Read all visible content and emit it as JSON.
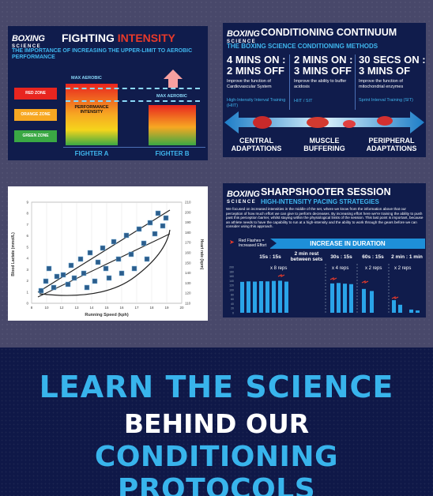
{
  "brand": {
    "logo_top": "BOXING",
    "logo_bottom": "SCIENCE"
  },
  "panel1": {
    "title_a": "FIGHTING ",
    "title_b": "INTENSITY",
    "subtitle": "THE IMPORTANCE OF INCREASING THE UPPER-LIMIT TO AEROBIC PERFORMANCE",
    "red_zone": "RED ZONE",
    "orange_zone": "ORANGE ZONE",
    "green_zone": "GREEN ZONE",
    "max_aerobic_a": "MAX AEROBIC",
    "max_aerobic_b": "MAX AEROBIC",
    "performance": "PERFORMANCE INTENSITY",
    "fighter_a": "FIGHTER A",
    "fighter_b": "FIGHTER B"
  },
  "panel2": {
    "title": "CONDITIONING CONTINUUM",
    "subtitle": "THE BOXING SCIENCE CONDITIONING METHODS",
    "methods": [
      {
        "head": "4 MINS ON :\n2 MINS OFF",
        "desc": "Improve the function of Cardiovascular System",
        "kind": "High-Intensity Interval Training (HIIT)"
      },
      {
        "head": "2 MINS ON :\n3 MINS OFF",
        "desc": "Improve the ability to buffer acidosis",
        "kind": "HIIT / SIT"
      },
      {
        "head": "30 SECS ON :\n3 MINS OF",
        "desc": "Improve the function of mitochondrial enzymes",
        "kind": "Sprint Interval Training (SIT)"
      }
    ],
    "adaptations": [
      "CENTRAL\nADAPTATIONS",
      "MUSCLE\nBUFFERING",
      "PERIPHERAL\nADAPTATIONS"
    ]
  },
  "panel3": {
    "ylabel": "Blood Lactate (mmol/L)",
    "y2label": "Heart rate (bpm)",
    "xlabel": "Running Speed (kph)",
    "xticks": [
      "8",
      "10",
      "12",
      "13",
      "14",
      "15",
      "16",
      "17",
      "18",
      "19",
      "20"
    ],
    "yticks": [
      "0",
      "1",
      "2",
      "3",
      "4",
      "5",
      "6",
      "7",
      "8",
      "9"
    ],
    "y2ticks": [
      "110",
      "120",
      "130",
      "140",
      "150",
      "160",
      "170",
      "180",
      "190",
      "200",
      "210"
    ]
  },
  "panel4": {
    "title": "SHARPSHOOTER SESSION",
    "subtitle": "HIGH-INTENSITY PACING STRATEGIES",
    "body": "We focused on increased intensities in the middle of the set, where we know from the information above that our perception of how much effort we can give to perform decreases. By increasing effort here we're training the ability to push past this perception barrier, whilst staying within the physiological limits of the session. This last point is important, because an athlete needs to have the capability to run at a high-intensity and the ability to work through the gears before we can consider using this approach.",
    "legend": "Red Flashes = Increased Effort",
    "banner": "INCREASE IN DURATION",
    "headers": [
      "15s : 15s",
      "2 min rest\nbetween sets",
      "30s : 15s",
      "60s : 15s",
      "2 min : 1 min"
    ],
    "reps": [
      "x 8 reps",
      "x 4 reps",
      "x 2 reps",
      "x 2 reps"
    ],
    "yticks": [
      "200",
      "180",
      "160",
      "140",
      "120",
      "100",
      "80",
      "60",
      "40",
      "20",
      "0"
    ],
    "bars": [
      135,
      137,
      136,
      138,
      137,
      139,
      140,
      136,
      128,
      130,
      127,
      125,
      104,
      95,
      55,
      35,
      14,
      10
    ]
  },
  "cta": {
    "line1": "LEARN THE SCIENCE",
    "line2": "BEHIND OUR",
    "line3": "CONDITIONING PROTOCOLS"
  },
  "colors": {
    "brand_blue": "#38b4ec",
    "navy": "#101c4c",
    "red": "#e83a2a"
  }
}
